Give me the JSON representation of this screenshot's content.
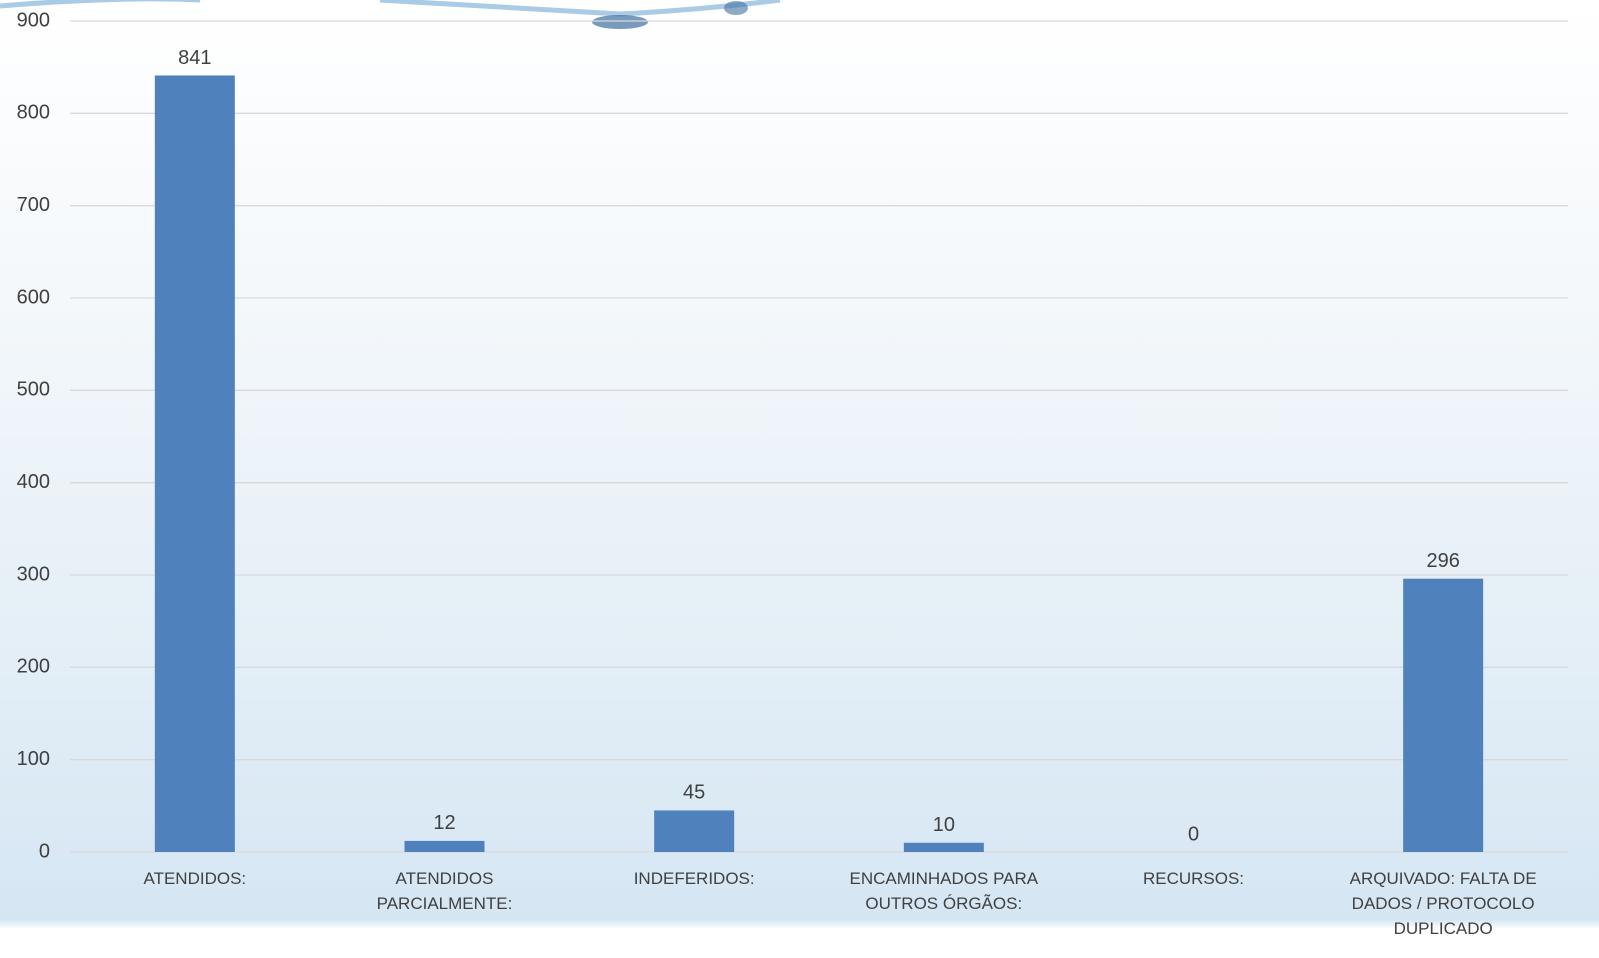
{
  "chart_data": {
    "type": "bar",
    "categories": [
      "ATENDIDOS:",
      "ATENDIDOS PARCIALMENTE:",
      "INDEFERIDOS:",
      "ENCAMINHADOS PARA OUTROS ÓRGÃOS:",
      "RECURSOS:",
      "ARQUIVADO: FALTA DE DADOS / PROTOCOLO DUPLICADO"
    ],
    "values": [
      841,
      12,
      45,
      10,
      0,
      296
    ],
    "color": "#4f81bd",
    "ylim": [
      0,
      900
    ],
    "yticks": [
      0,
      100,
      200,
      300,
      400,
      500,
      600,
      700,
      800,
      900
    ],
    "grid": true
  }
}
